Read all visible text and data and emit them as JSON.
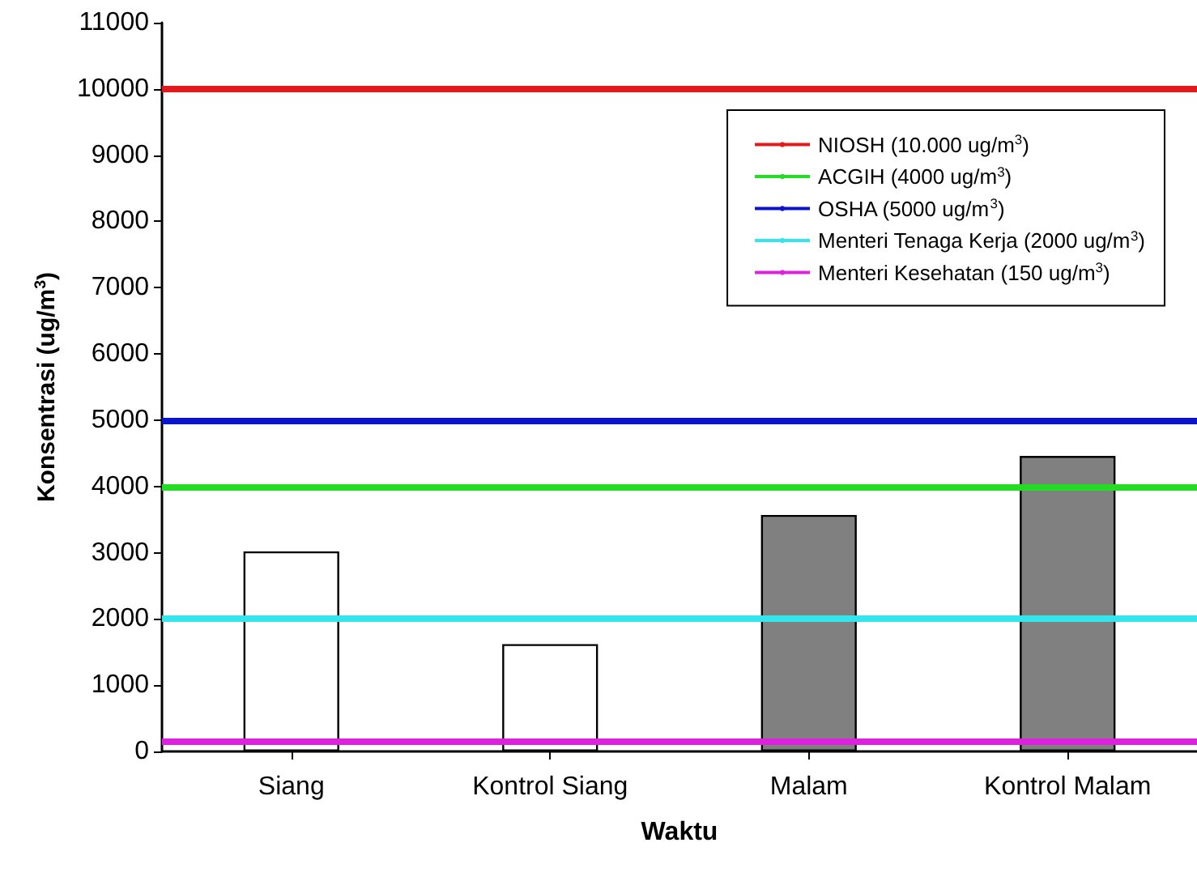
{
  "chart_data": {
    "type": "bar",
    "xlabel": "Waktu",
    "ylabel": "Konsentrasi (ug/m$^{3}$)",
    "categories": [
      "Siang",
      "Kontrol Siang",
      "Malam",
      "Kontrol Malam"
    ],
    "values": [
      3020,
      1620,
      3570,
      4460
    ],
    "colors": [
      "#ffffff",
      "#ffffff",
      "#808080",
      "#808080"
    ],
    "ylim": [
      0,
      11000
    ],
    "yticks": [
      0,
      1000,
      2000,
      3000,
      4000,
      5000,
      6000,
      7000,
      8000,
      9000,
      10000,
      11000
    ],
    "grid": false,
    "legend": "top right",
    "ref_lines": [
      {
        "axis": "y",
        "value": 10000,
        "label": "NIOSH (10.000 ug/m$^{3}$)",
        "color": "#e31a1c"
      },
      {
        "axis": "y",
        "value": 4000,
        "label": "ACGIH (4000 ug/m$^{3}$)",
        "color": "#22dd22"
      },
      {
        "axis": "y",
        "value": 5000,
        "label": "OSHA (5000 ug/m$^{3}$)",
        "color": "#0a14c8"
      },
      {
        "axis": "y",
        "value": 2000,
        "label": "Menteri Tenaga Kerja (2000 ug/m$^{3}$)",
        "color": "#33e6ee"
      },
      {
        "axis": "y",
        "value": 150,
        "label": "Menteri Kesehatan (150 ug/m$^{3}$)",
        "color": "#dd22dd"
      }
    ]
  }
}
